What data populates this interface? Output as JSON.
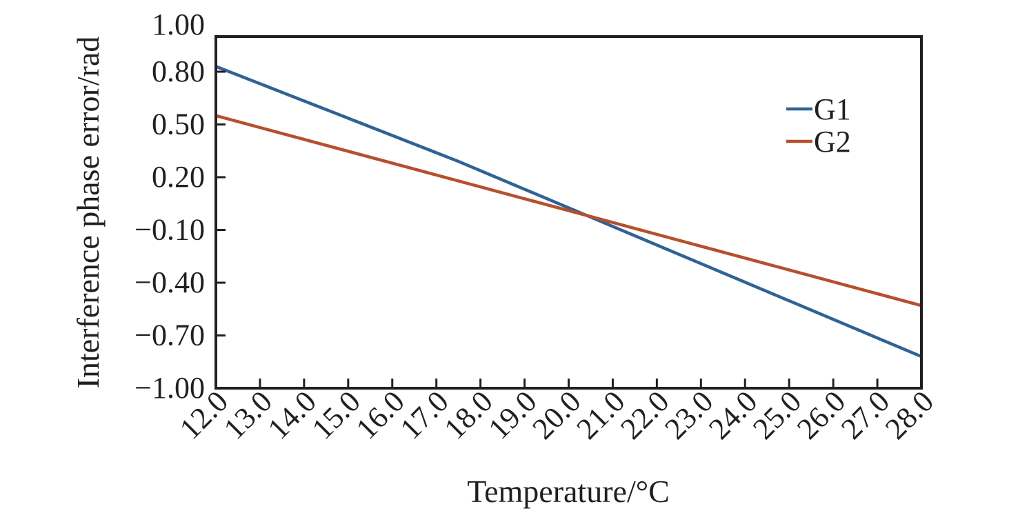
{
  "chart_data": {
    "type": "line",
    "title": "",
    "xlabel": "Temperature/°C",
    "ylabel": "Interference phase error/rad",
    "xlim": [
      12,
      28
    ],
    "ylim": [
      -1.0,
      1.0
    ],
    "x_ticks": [
      "12.0",
      "13.0",
      "14.0",
      "15.0",
      "16.0",
      "17.0",
      "18.0",
      "19.0",
      "20.0",
      "21.0",
      "22.0",
      "23.0",
      "24.0",
      "25.0",
      "26.0",
      "27.0",
      "28.0"
    ],
    "y_ticks": [
      "1.00",
      "0.80",
      "0.50",
      "0.20",
      "−0.10",
      "−0.40",
      "−0.70",
      "−1.00"
    ],
    "y_tick_values": [
      1.0,
      0.8,
      0.5,
      0.2,
      -0.1,
      -0.4,
      -0.7,
      -1.0
    ],
    "grid": false,
    "legend_position": "top-right",
    "series": [
      {
        "name": "G1",
        "color": "#2f6396",
        "x": [
          12,
          17.5,
          28
        ],
        "y": [
          0.83,
          0.29,
          -0.82
        ]
      },
      {
        "name": "G2",
        "color": "#b5502e",
        "x": [
          12,
          28
        ],
        "y": [
          0.55,
          -0.53
        ]
      }
    ]
  }
}
